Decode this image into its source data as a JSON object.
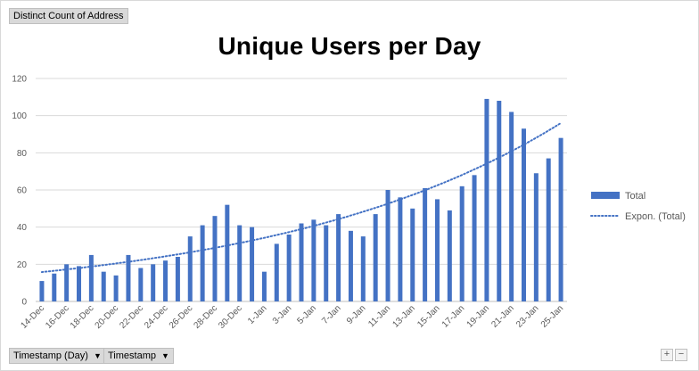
{
  "pivot": {
    "value_field": "Distinct Count of Address",
    "axis_fields": [
      "Timestamp (Day)",
      "Timestamp"
    ],
    "zoom_in": "+",
    "zoom_out": "−",
    "dropdown_icon": "dropdown-arrow-icon"
  },
  "colors": {
    "bar": "#4472c4",
    "trend": "#4472c4",
    "gridline": "#d9d9d9",
    "text": "#595959"
  },
  "chart_data": {
    "type": "bar",
    "title": "Unique Users per Day",
    "xlabel": "",
    "ylabel": "",
    "ylim": [
      0,
      120
    ],
    "yticks": [
      0,
      20,
      40,
      60,
      80,
      100,
      120
    ],
    "grid": true,
    "legend_position": "right",
    "categories": [
      "14-Dec",
      "15-Dec",
      "16-Dec",
      "17-Dec",
      "18-Dec",
      "19-Dec",
      "20-Dec",
      "21-Dec",
      "22-Dec",
      "23-Dec",
      "24-Dec",
      "25-Dec",
      "26-Dec",
      "27-Dec",
      "28-Dec",
      "29-Dec",
      "30-Dec",
      "31-Dec",
      "1-Jan",
      "2-Jan",
      "3-Jan",
      "4-Jan",
      "5-Jan",
      "6-Jan",
      "7-Jan",
      "8-Jan",
      "9-Jan",
      "10-Jan",
      "11-Jan",
      "12-Jan",
      "13-Jan",
      "14-Jan",
      "15-Jan",
      "16-Jan",
      "17-Jan",
      "18-Jan",
      "19-Jan",
      "20-Jan",
      "21-Jan",
      "22-Jan",
      "23-Jan",
      "24-Jan",
      "25-Jan"
    ],
    "x_tick_labels": [
      "14-Dec",
      "16-Dec",
      "18-Dec",
      "20-Dec",
      "22-Dec",
      "24-Dec",
      "26-Dec",
      "28-Dec",
      "30-Dec",
      "1-Jan",
      "3-Jan",
      "5-Jan",
      "7-Jan",
      "9-Jan",
      "11-Jan",
      "13-Jan",
      "15-Jan",
      "17-Jan",
      "19-Jan",
      "21-Jan",
      "23-Jan",
      "25-Jan"
    ],
    "series": [
      {
        "name": "Total",
        "values": [
          11,
          15,
          20,
          19,
          25,
          16,
          14,
          25,
          18,
          20,
          22,
          24,
          35,
          41,
          46,
          52,
          41,
          40,
          16,
          31,
          36,
          42,
          44,
          41,
          47,
          38,
          35,
          47,
          60,
          56,
          50,
          61,
          55,
          49,
          62,
          68,
          109,
          108,
          102,
          93,
          69,
          77,
          88
        ]
      }
    ],
    "trendline": {
      "name": "Expon. (Total)",
      "type": "exponential",
      "start_value": 15.8,
      "end_value": 96
    }
  }
}
